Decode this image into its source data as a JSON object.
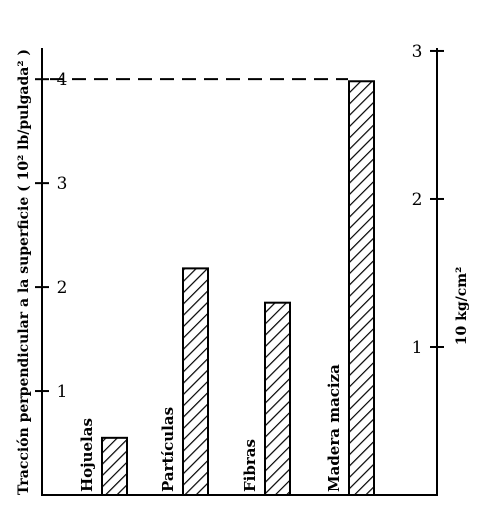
{
  "chart_data": {
    "type": "bar",
    "categories": [
      "Hojuelas",
      "Partículas",
      "Fibras",
      "Madera maciza"
    ],
    "values": [
      0.55,
      2.18,
      1.85,
      3.98
    ],
    "ylabel": "Tracción perpendicular a la superficie ( 10² lb/pulgada² )",
    "ylim": [
      0,
      4.3
    ],
    "yticks": [
      "1",
      "2",
      "3",
      "4"
    ],
    "y2label": "10 kg/cm²",
    "y2lim": [
      0,
      3.02
    ],
    "y2ticks": [
      "1",
      "2",
      "3"
    ],
    "reference_line_value": 4,
    "bar_pattern": "diagonal-hatch",
    "grid": false
  }
}
